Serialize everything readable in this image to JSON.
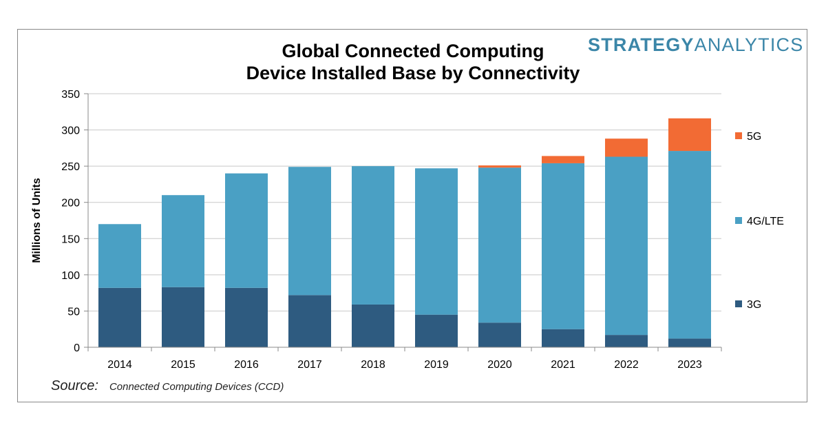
{
  "brand": {
    "part1": "STRATEGY",
    "part2": "ANALYTICS"
  },
  "source": {
    "label": "Source:",
    "value": "Connected Computing Devices (CCD)"
  },
  "chart_data": {
    "type": "bar",
    "stacked": true,
    "title_line1": "Global Connected Computing",
    "title_line2": "Device Installed Base by Connectivity",
    "ylabel": "Millions of Units",
    "xlabel": "",
    "ylim": [
      0,
      350
    ],
    "yticks": [
      0,
      50,
      100,
      150,
      200,
      250,
      300,
      350
    ],
    "grid": true,
    "legend_position": "right",
    "categories": [
      "2014",
      "2015",
      "2016",
      "2017",
      "2018",
      "2019",
      "2020",
      "2021",
      "2022",
      "2023"
    ],
    "series": [
      {
        "name": "3G",
        "color": "#2e5b80",
        "values": [
          82,
          83,
          82,
          72,
          59,
          45,
          34,
          25,
          17,
          12
        ]
      },
      {
        "name": "4G/LTE",
        "color": "#4aa0c4",
        "values": [
          88,
          127,
          158,
          177,
          191,
          202,
          214,
          229,
          246,
          259
        ]
      },
      {
        "name": "5G",
        "color": "#f26b34",
        "values": [
          0,
          0,
          0,
          0,
          0,
          0,
          3,
          10,
          25,
          45
        ]
      }
    ]
  }
}
